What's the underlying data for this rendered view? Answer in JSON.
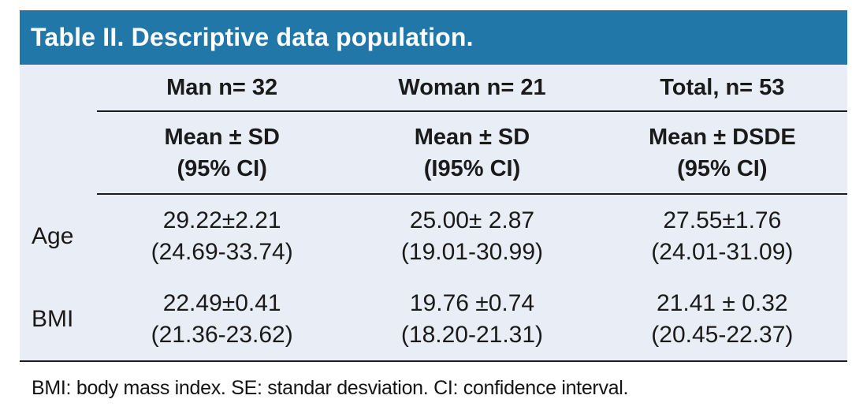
{
  "colors": {
    "header_bg": "#2277a9",
    "body_bg": "#e9edf5",
    "title_text": "#ffffff",
    "rule": "#1c1c1c"
  },
  "title": "Table II. Descriptive data population.",
  "table": {
    "column_headers": [
      "Man n= 32",
      "Woman n= 21",
      "Total, n= 53"
    ],
    "subheaders": [
      {
        "line1": "Mean ± SD",
        "line2": "(95% CI)"
      },
      {
        "line1": "Mean ± SD",
        "line2": "(I95% CI)"
      },
      {
        "line1": "Mean ± DSDE",
        "line2": "(95% CI)"
      }
    ],
    "rows": [
      {
        "label": "Age",
        "cells": [
          {
            "value": "29.22±2.21",
            "ci": "(24.69-33.74)"
          },
          {
            "value": "25.00± 2.87",
            "ci": "(19.01-30.99)"
          },
          {
            "value": "27.55±1.76",
            "ci": "(24.01-31.09)"
          }
        ]
      },
      {
        "label": "BMI",
        "cells": [
          {
            "value": "22.49±0.41",
            "ci": "(21.36-23.62)"
          },
          {
            "value": "19.76 ±0.74",
            "ci": "(18.20-21.31)"
          },
          {
            "value": "21.41 ± 0.32",
            "ci": "(20.45-22.37)"
          }
        ]
      }
    ]
  },
  "footnote": "BMI: body mass index. SE: standar desviation. CI: confidence interval.",
  "chart_data": {
    "type": "table",
    "title": "Table II. Descriptive data population.",
    "columns": [
      "",
      "Man n= 32 / Mean ± SD (95% CI)",
      "Woman n= 21 / Mean ± SD (I95% CI)",
      "Total, n= 53 / Mean ± DSDE (95% CI)"
    ],
    "rows": [
      [
        "Age",
        "29.22±2.21 (24.69-33.74)",
        "25.00± 2.87 (19.01-30.99)",
        "27.55±1.76 (24.01-31.09)"
      ],
      [
        "BMI",
        "22.49±0.41 (21.36-23.62)",
        "19.76 ±0.74 (18.20-21.31)",
        "21.41 ± 0.32 (20.45-22.37)"
      ]
    ],
    "footnote": "BMI: body mass index. SE: standar desviation. CI: confidence interval."
  }
}
